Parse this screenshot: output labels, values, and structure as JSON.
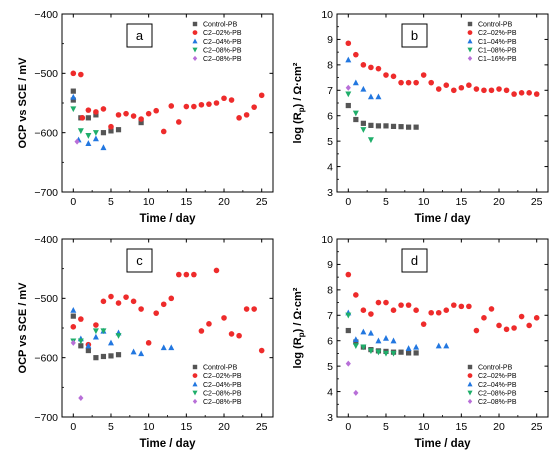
{
  "series_styles": [
    {
      "color": "#555555",
      "marker": "square"
    },
    {
      "color": "#ee2b2b",
      "marker": "circle"
    },
    {
      "color": "#2277e0",
      "marker": "triangle-up"
    },
    {
      "color": "#1fae6a",
      "marker": "triangle-down"
    },
    {
      "color": "#b86fd8",
      "marker": "diamond"
    }
  ],
  "chart_data": [
    {
      "panel_label": "a",
      "type": "scatter",
      "xlabel": "Time / day",
      "ylabel": "OCP vs SCE / mV",
      "xlim": [
        -1.5,
        26.5
      ],
      "ylim": [
        -700,
        -400
      ],
      "xticks": [
        0,
        5,
        10,
        15,
        20,
        25
      ],
      "yticks": [
        -700,
        -600,
        -500,
        -400
      ],
      "legend_position": "top-right",
      "series": [
        {
          "name": "Control-PB",
          "points": [
            [
              0,
              -530
            ],
            [
              0,
              -545
            ],
            [
              1,
              -575
            ],
            [
              2,
              -575
            ],
            [
              3,
              -570
            ],
            [
              4,
              -600
            ],
            [
              5,
              -597
            ],
            [
              6,
              -595
            ],
            [
              9,
              -583
            ]
          ]
        },
        {
          "name": "C2–02%-PB",
          "points": [
            [
              0,
              -500
            ],
            [
              1,
              -502
            ],
            [
              1.2,
              -575
            ],
            [
              2,
              -562
            ],
            [
              3,
              -565
            ],
            [
              4,
              -560
            ],
            [
              5,
              -590
            ],
            [
              6,
              -570
            ],
            [
              7,
              -568
            ],
            [
              8,
              -572
            ],
            [
              9,
              -577
            ],
            [
              10,
              -568
            ],
            [
              11,
              -563
            ],
            [
              12,
              -598
            ],
            [
              13,
              -555
            ],
            [
              14,
              -582
            ],
            [
              15,
              -556
            ],
            [
              16,
              -556
            ],
            [
              17,
              -553
            ],
            [
              18,
              -552
            ],
            [
              19,
              -550
            ],
            [
              20,
              -542
            ],
            [
              21,
              -545
            ],
            [
              22,
              -575
            ],
            [
              23,
              -570
            ],
            [
              24,
              -557
            ],
            [
              25,
              -537
            ]
          ]
        },
        {
          "name": "C2–04%-PB",
          "points": [
            [
              0,
              -540
            ],
            [
              0.7,
              -612
            ],
            [
              2,
              -618
            ],
            [
              3,
              -610
            ],
            [
              4,
              -625
            ]
          ]
        },
        {
          "name": "C2–08%-PB",
          "points": [
            [
              0,
              -560
            ],
            [
              1,
              -597
            ],
            [
              2,
              -605
            ],
            [
              3,
              -600
            ]
          ]
        },
        {
          "name": "C2–08%-PB",
          "points": [
            [
              0.5,
              -615
            ]
          ]
        }
      ]
    },
    {
      "panel_label": "b",
      "type": "scatter",
      "xlabel": "Time / day",
      "ylabel": "log (R",
      "ylabel_sub": "p",
      "ylabel_unit": ") / Ω·cm²",
      "xlim": [
        -1.5,
        26.5
      ],
      "ylim": [
        3,
        10
      ],
      "xticks": [
        0,
        5,
        10,
        15,
        20,
        25
      ],
      "yticks": [
        3,
        4,
        5,
        6,
        7,
        8,
        9,
        10
      ],
      "legend_position": "top-right",
      "series": [
        {
          "name": "Control-PB",
          "points": [
            [
              0,
              6.4
            ],
            [
              1,
              5.85
            ],
            [
              2,
              5.7
            ],
            [
              3,
              5.62
            ],
            [
              4,
              5.6
            ],
            [
              5,
              5.6
            ],
            [
              6,
              5.58
            ],
            [
              7,
              5.57
            ],
            [
              8,
              5.55
            ],
            [
              9,
              5.55
            ]
          ]
        },
        {
          "name": "C2–02%-PB",
          "points": [
            [
              0,
              8.85
            ],
            [
              1,
              8.4
            ],
            [
              2,
              8.0
            ],
            [
              3,
              7.9
            ],
            [
              4,
              7.85
            ],
            [
              5,
              7.6
            ],
            [
              6,
              7.55
            ],
            [
              7,
              7.3
            ],
            [
              8,
              7.3
            ],
            [
              9,
              7.3
            ],
            [
              10,
              7.6
            ],
            [
              11,
              7.3
            ],
            [
              12,
              7.05
            ],
            [
              13,
              7.2
            ],
            [
              14,
              7.0
            ],
            [
              15,
              7.1
            ],
            [
              16,
              7.2
            ],
            [
              17,
              7.05
            ],
            [
              18,
              7.0
            ],
            [
              19,
              7.0
            ],
            [
              20,
              7.05
            ],
            [
              21,
              7.0
            ],
            [
              22,
              6.85
            ],
            [
              23,
              6.9
            ],
            [
              24,
              6.9
            ],
            [
              25,
              6.85
            ]
          ]
        },
        {
          "name": "C1–04%-PB",
          "points": [
            [
              0,
              8.2
            ],
            [
              1,
              7.3
            ],
            [
              2,
              7.05
            ],
            [
              3,
              6.75
            ],
            [
              4,
              6.75
            ]
          ]
        },
        {
          "name": "C1–08%-PB",
          "points": [
            [
              0,
              6.85
            ],
            [
              1,
              6.1
            ],
            [
              2,
              5.45
            ],
            [
              3,
              5.05
            ]
          ]
        },
        {
          "name": "C1–16%-PB",
          "points": [
            [
              0,
              7.1
            ]
          ]
        }
      ]
    },
    {
      "panel_label": "c",
      "type": "scatter",
      "xlabel": "Time / day",
      "ylabel": "OCP vs SCE / mV",
      "xlim": [
        -1.5,
        26.5
      ],
      "ylim": [
        -700,
        -400
      ],
      "xticks": [
        0,
        5,
        10,
        15,
        20,
        25
      ],
      "yticks": [
        -700,
        -600,
        -500,
        -400
      ],
      "legend_position": "bottom-right",
      "series": [
        {
          "name": "Control-PB",
          "points": [
            [
              0,
              -530
            ],
            [
              1,
              -580
            ],
            [
              2,
              -588
            ],
            [
              3,
              -600
            ],
            [
              4,
              -598
            ],
            [
              5,
              -597
            ],
            [
              6,
              -595
            ]
          ]
        },
        {
          "name": "C2–02%-PB",
          "points": [
            [
              0,
              -548
            ],
            [
              1,
              -535
            ],
            [
              2,
              -578
            ],
            [
              3,
              -545
            ],
            [
              4,
              -505
            ],
            [
              5,
              -497
            ],
            [
              6,
              -508
            ],
            [
              7,
              -498
            ],
            [
              8,
              -505
            ],
            [
              9,
              -518
            ],
            [
              10,
              -575
            ],
            [
              11,
              -525
            ],
            [
              12,
              -510
            ],
            [
              13,
              -500
            ],
            [
              14,
              -460
            ],
            [
              15,
              -460
            ],
            [
              16,
              -460
            ],
            [
              17,
              -555
            ],
            [
              18,
              -543
            ],
            [
              19,
              -453
            ],
            [
              20,
              -533
            ],
            [
              21,
              -560
            ],
            [
              22,
              -563
            ],
            [
              23,
              -518
            ],
            [
              24,
              -518
            ],
            [
              25,
              -588
            ]
          ]
        },
        {
          "name": "C2–04%-PB",
          "points": [
            [
              0,
              -520
            ],
            [
              1,
              -568
            ],
            [
              2,
              -580
            ],
            [
              3,
              -565
            ],
            [
              4,
              -555
            ],
            [
              5,
              -575
            ],
            [
              6,
              -558
            ],
            [
              8,
              -590
            ],
            [
              9,
              -593
            ],
            [
              12,
              -583
            ],
            [
              13,
              -583
            ]
          ]
        },
        {
          "name": "C2–08%-PB",
          "points": [
            [
              0,
              -572
            ],
            [
              1,
              -572
            ],
            [
              3,
              -555
            ],
            [
              4,
              -555
            ],
            [
              6,
              -563
            ]
          ]
        },
        {
          "name": "C2–08%-PB",
          "points": [
            [
              0,
              -575
            ],
            [
              1,
              -668
            ]
          ]
        }
      ]
    },
    {
      "panel_label": "d",
      "type": "scatter",
      "xlabel": "Time / day",
      "ylabel": "log (R",
      "ylabel_sub": "p",
      "ylabel_unit": ") / Ω·cm²",
      "xlim": [
        -1.5,
        26.5
      ],
      "ylim": [
        3,
        10
      ],
      "xticks": [
        0,
        5,
        10,
        15,
        20,
        25
      ],
      "yticks": [
        3,
        4,
        5,
        6,
        7,
        8,
        9,
        10
      ],
      "legend_position": "bottom-right",
      "series": [
        {
          "name": "Control-PB",
          "points": [
            [
              0,
              6.4
            ],
            [
              1,
              5.95
            ],
            [
              2,
              5.75
            ],
            [
              3,
              5.65
            ],
            [
              4,
              5.6
            ],
            [
              5,
              5.58
            ],
            [
              6,
              5.55
            ],
            [
              7,
              5.55
            ],
            [
              8,
              5.52
            ],
            [
              9,
              5.52
            ]
          ]
        },
        {
          "name": "C2–02%-PB",
          "points": [
            [
              0,
              8.6
            ],
            [
              1,
              7.8
            ],
            [
              2,
              7.2
            ],
            [
              3,
              7.05
            ],
            [
              4,
              7.5
            ],
            [
              5,
              7.5
            ],
            [
              6,
              7.2
            ],
            [
              7,
              7.4
            ],
            [
              8,
              7.4
            ],
            [
              9,
              7.2
            ],
            [
              10,
              6.65
            ],
            [
              11,
              7.1
            ],
            [
              12,
              7.1
            ],
            [
              13,
              7.2
            ],
            [
              14,
              7.4
            ],
            [
              15,
              7.35
            ],
            [
              16,
              7.35
            ],
            [
              17,
              6.4
            ],
            [
              18,
              6.9
            ],
            [
              19,
              7.25
            ],
            [
              20,
              6.6
            ],
            [
              21,
              6.45
            ],
            [
              22,
              6.5
            ],
            [
              23,
              6.95
            ],
            [
              24,
              6.6
            ],
            [
              25,
              6.9
            ]
          ]
        },
        {
          "name": "C2–04%-PB",
          "points": [
            [
              0,
              7.1
            ],
            [
              1,
              6.05
            ],
            [
              2,
              6.35
            ],
            [
              3,
              6.3
            ],
            [
              4,
              6.0
            ],
            [
              5,
              6.1
            ],
            [
              6,
              6.0
            ],
            [
              8,
              5.7
            ],
            [
              9,
              5.75
            ],
            [
              12,
              5.8
            ],
            [
              13,
              5.8
            ]
          ]
        },
        {
          "name": "C2–08%-PB",
          "points": [
            [
              0,
              7.0
            ],
            [
              1,
              5.8
            ],
            [
              2,
              5.75
            ],
            [
              3,
              5.6
            ],
            [
              4,
              5.55
            ],
            [
              5,
              5.5
            ],
            [
              6,
              5.5
            ]
          ]
        },
        {
          "name": "C2–08%-PB",
          "points": [
            [
              0,
              5.1
            ],
            [
              1,
              3.95
            ]
          ]
        }
      ]
    }
  ]
}
